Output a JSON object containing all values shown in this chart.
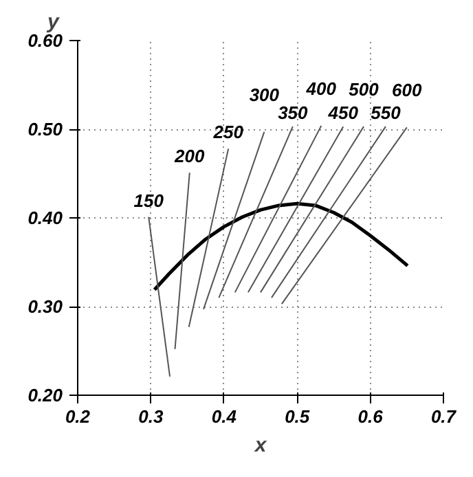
{
  "chart_data": {
    "type": "line",
    "xlabel": "x",
    "ylabel": "y",
    "xlim": [
      0.2,
      0.7
    ],
    "ylim": [
      0.2,
      0.6
    ],
    "xticks": [
      0.2,
      0.3,
      0.4,
      0.5,
      0.6,
      0.7
    ],
    "yticks": [
      {
        "value": 0.2,
        "label": "0.20"
      },
      {
        "value": 0.3,
        "label": "0.30"
      },
      {
        "value": 0.4,
        "label": "0.40"
      },
      {
        "value": 0.5,
        "label": "0.50"
      },
      {
        "value": 0.6,
        "label": "0.60"
      }
    ],
    "grid": true,
    "legend": false,
    "marker": "none",
    "line_style": "solid",
    "series": [
      {
        "color": "#000000",
        "x": [
          0.305,
          0.325,
          0.35,
          0.375,
          0.4,
          0.425,
          0.45,
          0.475,
          0.5,
          0.525,
          0.55,
          0.575,
          0.6,
          0.625,
          0.651
        ],
        "values": [
          0.319,
          0.337,
          0.358,
          0.376,
          0.39,
          0.401,
          0.409,
          0.414,
          0.416,
          0.414,
          0.406,
          0.395,
          0.38,
          0.364,
          0.346
        ]
      },
      {
        "name": "150",
        "color": "#555555",
        "x": [
          0.326,
          0.297
        ],
        "values": [
          0.221,
          0.401
        ]
      },
      {
        "name": "200",
        "color": "#555555",
        "x": [
          0.333,
          0.353
        ],
        "values": [
          0.252,
          0.451
        ]
      },
      {
        "name": "250",
        "color": "#555555",
        "x": [
          0.352,
          0.406
        ],
        "values": [
          0.277,
          0.478
        ]
      },
      {
        "name": "300",
        "color": "#555555",
        "x": [
          0.372,
          0.455
        ],
        "values": [
          0.297,
          0.497
        ]
      },
      {
        "name": "350",
        "color": "#555555",
        "x": [
          0.393,
          0.494
        ],
        "values": [
          0.31,
          0.503
        ]
      },
      {
        "name": "400",
        "color": "#555555",
        "x": [
          0.415,
          0.533
        ],
        "values": [
          0.316,
          0.504
        ]
      },
      {
        "name": "450",
        "color": "#555555",
        "x": [
          0.433,
          0.563
        ],
        "values": [
          0.316,
          0.503
        ]
      },
      {
        "name": "500",
        "color": "#555555",
        "x": [
          0.45,
          0.591
        ],
        "values": [
          0.316,
          0.503
        ]
      },
      {
        "name": "550",
        "color": "#555555",
        "x": [
          0.465,
          0.621
        ],
        "values": [
          0.31,
          0.503
        ]
      },
      {
        "name": "600",
        "color": "#555555",
        "x": [
          0.479,
          0.65
        ],
        "values": [
          0.303,
          0.502
        ]
      }
    ]
  }
}
